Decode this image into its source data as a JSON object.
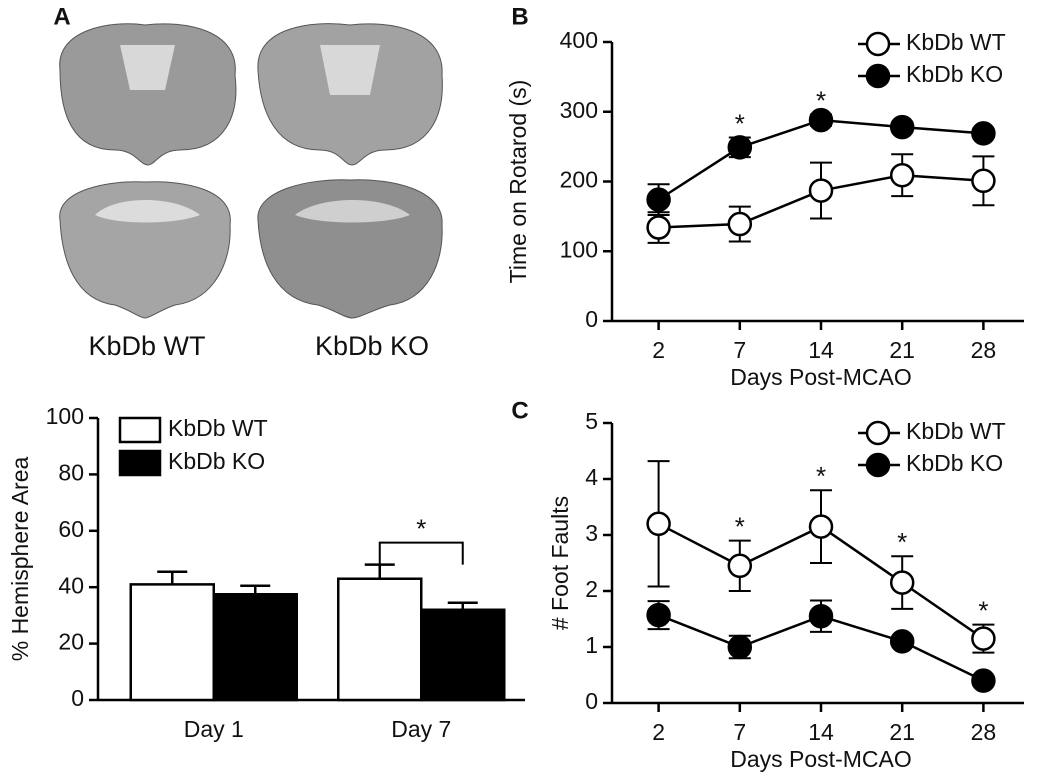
{
  "panel_labels": [
    "A",
    "B",
    "C"
  ],
  "image_captions": [
    "KbDb WT",
    "KbDb KO"
  ],
  "chart_data": [
    {
      "type": "bar",
      "ylabel": "% Hemisphere Area",
      "categories": [
        "Day 1",
        "Day 7"
      ],
      "series": [
        {
          "name": "KbDb WT",
          "color": "#ffffff",
          "values": [
            41,
            43
          ],
          "errors": [
            4.5,
            5
          ]
        },
        {
          "name": "KbDb KO",
          "color": "#000000",
          "values": [
            37.5,
            32
          ],
          "errors": [
            3,
            2.5
          ]
        }
      ],
      "significance": [
        null,
        "*"
      ],
      "ylim": [
        0,
        100
      ],
      "yticks": [
        0,
        20,
        40,
        60,
        80,
        100
      ],
      "legend": "top-left"
    },
    {
      "type": "line",
      "ylabel": "Time on Rotarod (s)",
      "xlabel": "Days Post-MCAO",
      "categories": [
        "2",
        "7",
        "14",
        "21",
        "28"
      ],
      "series": [
        {
          "name": "KbDb WT",
          "color": "#ffffff",
          "values": [
            134,
            139,
            187,
            209,
            201
          ],
          "errors": [
            22,
            25,
            40,
            30,
            35
          ]
        },
        {
          "name": "KbDb KO",
          "color": "#000000",
          "values": [
            174,
            249,
            288,
            278,
            269
          ],
          "errors": [
            22,
            14,
            8,
            6,
            6
          ]
        }
      ],
      "significance": [
        null,
        "*",
        "*",
        null,
        null
      ],
      "ylim": [
        0,
        400
      ],
      "yticks": [
        0,
        100,
        200,
        300,
        400
      ],
      "legend": "top-right"
    },
    {
      "type": "line",
      "ylabel": "# Foot Faults",
      "xlabel": "Days Post-MCAO",
      "categories": [
        "2",
        "7",
        "14",
        "21",
        "28"
      ],
      "series": [
        {
          "name": "KbDb WT",
          "color": "#ffffff",
          "values": [
            3.2,
            2.45,
            3.15,
            2.15,
            1.15
          ],
          "errors": [
            1.12,
            0.45,
            0.65,
            0.47,
            0.25
          ]
        },
        {
          "name": "KbDb KO",
          "color": "#000000",
          "values": [
            1.57,
            1.0,
            1.55,
            1.1,
            0.4
          ],
          "errors": [
            0.25,
            0.2,
            0.28,
            0.05,
            0.05
          ]
        }
      ],
      "significance": [
        null,
        "*",
        "*",
        "*",
        "*"
      ],
      "ylim": [
        0,
        5
      ],
      "yticks": [
        0,
        1,
        2,
        3,
        4,
        5
      ],
      "legend": "top-right"
    }
  ]
}
